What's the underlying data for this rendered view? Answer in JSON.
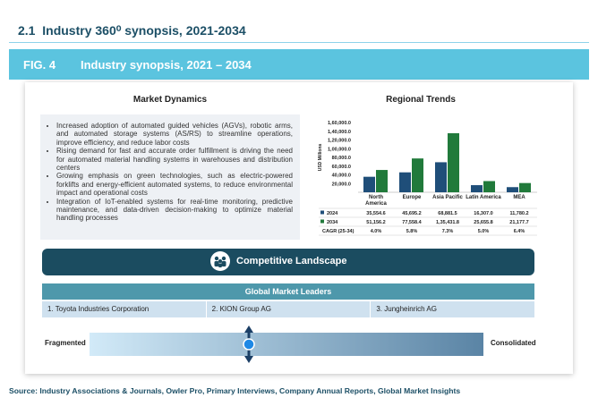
{
  "header": {
    "section_number": "2.1",
    "section_title": "Industry 360⁰ synopsis, 2021-2034"
  },
  "figure": {
    "label": "FIG. 4",
    "title": "Industry synopsis, 2021 – 2034"
  },
  "market_dynamics": {
    "title": "Market Dynamics",
    "bullets": [
      "Increased adoption of automated guided vehicles (AGVs), robotic arms, and automated storage systems (AS/RS) to streamline operations, improve efficiency, and reduce labor costs",
      "Rising demand for fast and accurate order fulfillment is driving the need for automated material handling systems in warehouses and distribution centers",
      "Growing emphasis on green technologies, such as electric-powered forklifts and energy-efficient automated systems, to reduce environmental impact and operational costs",
      "Integration of IoT-enabled systems for real-time monitoring, predictive maintenance, and data-driven decision-making to optimize material handling processes"
    ]
  },
  "regional_trends": {
    "title": "Regional Trends",
    "chart": {
      "type": "bar",
      "y_label": "USD Millions",
      "categories": [
        "North America",
        "Europe",
        "Asia Pacific",
        "Latin America",
        "MEA"
      ],
      "series": [
        {
          "name": "2024",
          "color": "#1f4e79",
          "values": [
            35554.6,
            45695.2,
            68881.5,
            16307.0,
            11780.2
          ],
          "value_labels": [
            "35,554.6",
            "45,695.2",
            "68,881.5",
            "16,307.0",
            "11,780.2"
          ]
        },
        {
          "name": "2034",
          "color": "#217a3b",
          "values": [
            51156.2,
            77558.4,
            135431.8,
            25655.8,
            21177.7
          ],
          "value_labels": [
            "51,156.2",
            "77,558.4",
            "1,35,431.8",
            "25,655.8",
            "21,177.7"
          ]
        }
      ],
      "cagr": {
        "label": "CAGR (25-34)",
        "values": [
          "4.0%",
          "5.8%",
          "7.3%",
          "5.0%",
          "6.4%"
        ]
      },
      "ylim": [
        0,
        160000
      ],
      "yticks": [
        {
          "value": 20000,
          "label": "20,000.0"
        },
        {
          "value": 40000,
          "label": "40,000.0"
        },
        {
          "value": 60000,
          "label": "60,000.0"
        },
        {
          "value": 80000,
          "label": "80,000.0"
        },
        {
          "value": 100000,
          "label": "1,00,000.0"
        },
        {
          "value": 120000,
          "label": "1,20,000.0"
        },
        {
          "value": 140000,
          "label": "1,40,000.0"
        },
        {
          "value": 160000,
          "label": "1,60,000.0"
        }
      ]
    }
  },
  "competitive_landscape": {
    "title": "Competitive Landscape",
    "leaders_title": "Global Market Leaders",
    "leaders": [
      "1.   Toyota Industries Corporation",
      "2. KION Group AG",
      "3. Jungheinrich AG"
    ],
    "scale_left": "Fragmented",
    "scale_right": "Consolidated"
  },
  "source": "Source: Industry Associations & Journals, Owler Pro, Primary Interviews, Company Annual Reports, Global Market Insights"
}
